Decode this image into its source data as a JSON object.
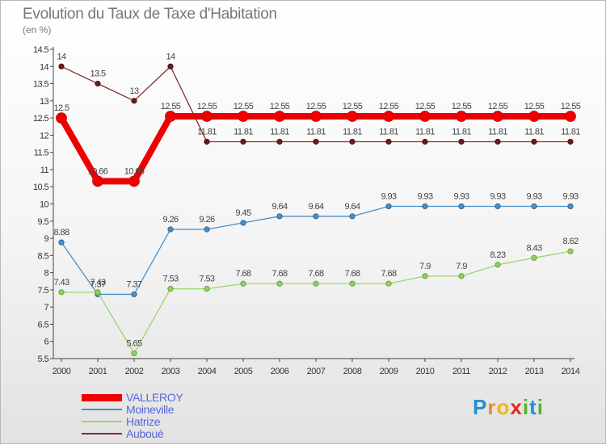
{
  "title": "Evolution du Taux de Taxe d'Habitation",
  "subtitle": "(en %)",
  "chart_data": {
    "type": "line",
    "title": "Evolution du Taux de Taxe d'Habitation",
    "ylabel": "(en %)",
    "xlabel": "",
    "ylim": [
      5.5,
      14.5
    ],
    "ytick_step": 0.5,
    "grid": false,
    "legend_position": "bottom-left",
    "categories": [
      "2000",
      "2001",
      "2002",
      "2003",
      "2004",
      "2005",
      "2006",
      "2007",
      "2008",
      "2009",
      "2010",
      "2011",
      "2012",
      "2013",
      "2014"
    ],
    "series": [
      {
        "name": "Auboué",
        "color": "#8b2a2a",
        "values": [
          14,
          13.5,
          13,
          14,
          11.81,
          11.81,
          11.81,
          11.81,
          11.81,
          11.81,
          11.81,
          11.81,
          11.81,
          11.81,
          11.81
        ],
        "labels": [
          "14",
          "13.5",
          "13",
          "14",
          "11.81",
          "11.81",
          "11.81",
          "11.81",
          "11.81",
          "11.81",
          "11.81",
          "11.81",
          "11.81",
          "11.81",
          "11.81"
        ]
      },
      {
        "name": "Moineville",
        "color": "#4a90c8",
        "values": [
          8.88,
          7.37,
          7.37,
          9.26,
          9.26,
          9.45,
          9.64,
          9.64,
          9.64,
          9.93,
          9.93,
          9.93,
          9.93,
          9.93,
          9.93
        ],
        "labels": [
          "8.88",
          "7.37",
          "7.37",
          "9.26",
          "9.26",
          "9.45",
          "9.64",
          "9.64",
          "9.64",
          "9.93",
          "9.93",
          "9.93",
          "9.93",
          "9.93",
          "9.93"
        ]
      },
      {
        "name": "Hatrize",
        "color": "#99d96a",
        "values": [
          7.43,
          7.43,
          5.65,
          7.53,
          7.53,
          7.68,
          7.68,
          7.68,
          7.68,
          7.68,
          7.9,
          7.9,
          8.23,
          8.43,
          8.62
        ],
        "labels": [
          "7.43",
          "7.43",
          "5.65",
          "7.53",
          "7.53",
          "7.68",
          "7.68",
          "7.68",
          "7.68",
          "7.68",
          "7.9",
          "7.9",
          "8.23",
          "8.43",
          "8.62"
        ]
      },
      {
        "name": "VALLEROY",
        "color": "#ee0000",
        "values": [
          12.5,
          10.66,
          10.66,
          12.55,
          12.55,
          12.55,
          12.55,
          12.55,
          12.55,
          12.55,
          12.55,
          12.55,
          12.55,
          12.55,
          12.55
        ],
        "labels": [
          "12.5",
          "10.66",
          "10.66",
          "12.55",
          "12.55",
          "12.55",
          "12.55",
          "12.55",
          "12.55",
          "12.55",
          "12.55",
          "12.55",
          "12.55",
          "12.55",
          "12.55"
        ]
      }
    ]
  },
  "legend": [
    {
      "name": "VALLEROY",
      "color": "#ee0000"
    },
    {
      "name": "Moineville",
      "color": "#4a90c8"
    },
    {
      "name": "Hatrize",
      "color": "#99d96a"
    },
    {
      "name": "Auboué",
      "color": "#8b2a2a"
    }
  ],
  "logo": {
    "letters": [
      "P",
      "r",
      "o",
      "x",
      "i",
      "t",
      "i"
    ],
    "colors": [
      "#1e90d8",
      "#f08a1c",
      "#f0b41c",
      "#e8281c",
      "#58b030",
      "#1e90d8",
      "#58b030"
    ]
  }
}
